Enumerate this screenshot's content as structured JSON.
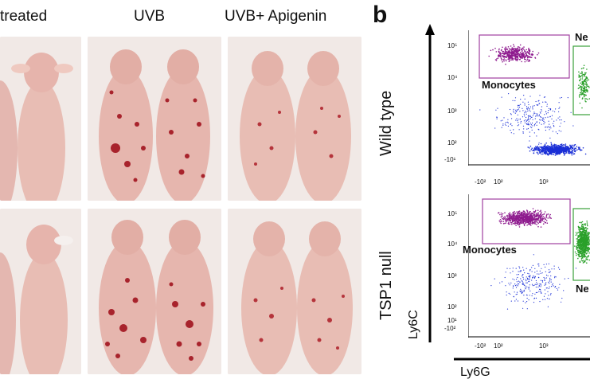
{
  "panel_a": {
    "columns": [
      "treated",
      "UVB",
      "UVB+ Apigenin"
    ]
  },
  "panel_b": {
    "letter": "b",
    "rows": [
      "Wild type",
      "TSP1 null"
    ],
    "gates": {
      "monocytes": "Monocytes",
      "neutrophils": "Ne"
    },
    "y_ticks": [
      "10⁵",
      "10⁴",
      "10³",
      "10²",
      "-10¹"
    ],
    "y_ticks_bottom": [
      "10⁵",
      "10⁴",
      "10³",
      "10²",
      "10¹",
      "-10²"
    ],
    "x_ticks": [
      "-10²",
      "10²",
      "10³"
    ],
    "x_axis_label": "Ly6G",
    "y_axis_label": "Ly6C"
  },
  "colors": {
    "monocytes": "#8e1a8e",
    "neutrophils": "#2aa02a",
    "other": "#1a2fd6",
    "gate_monocytes": "#a040a0",
    "gate_neutrophils": "#3aa03a"
  }
}
